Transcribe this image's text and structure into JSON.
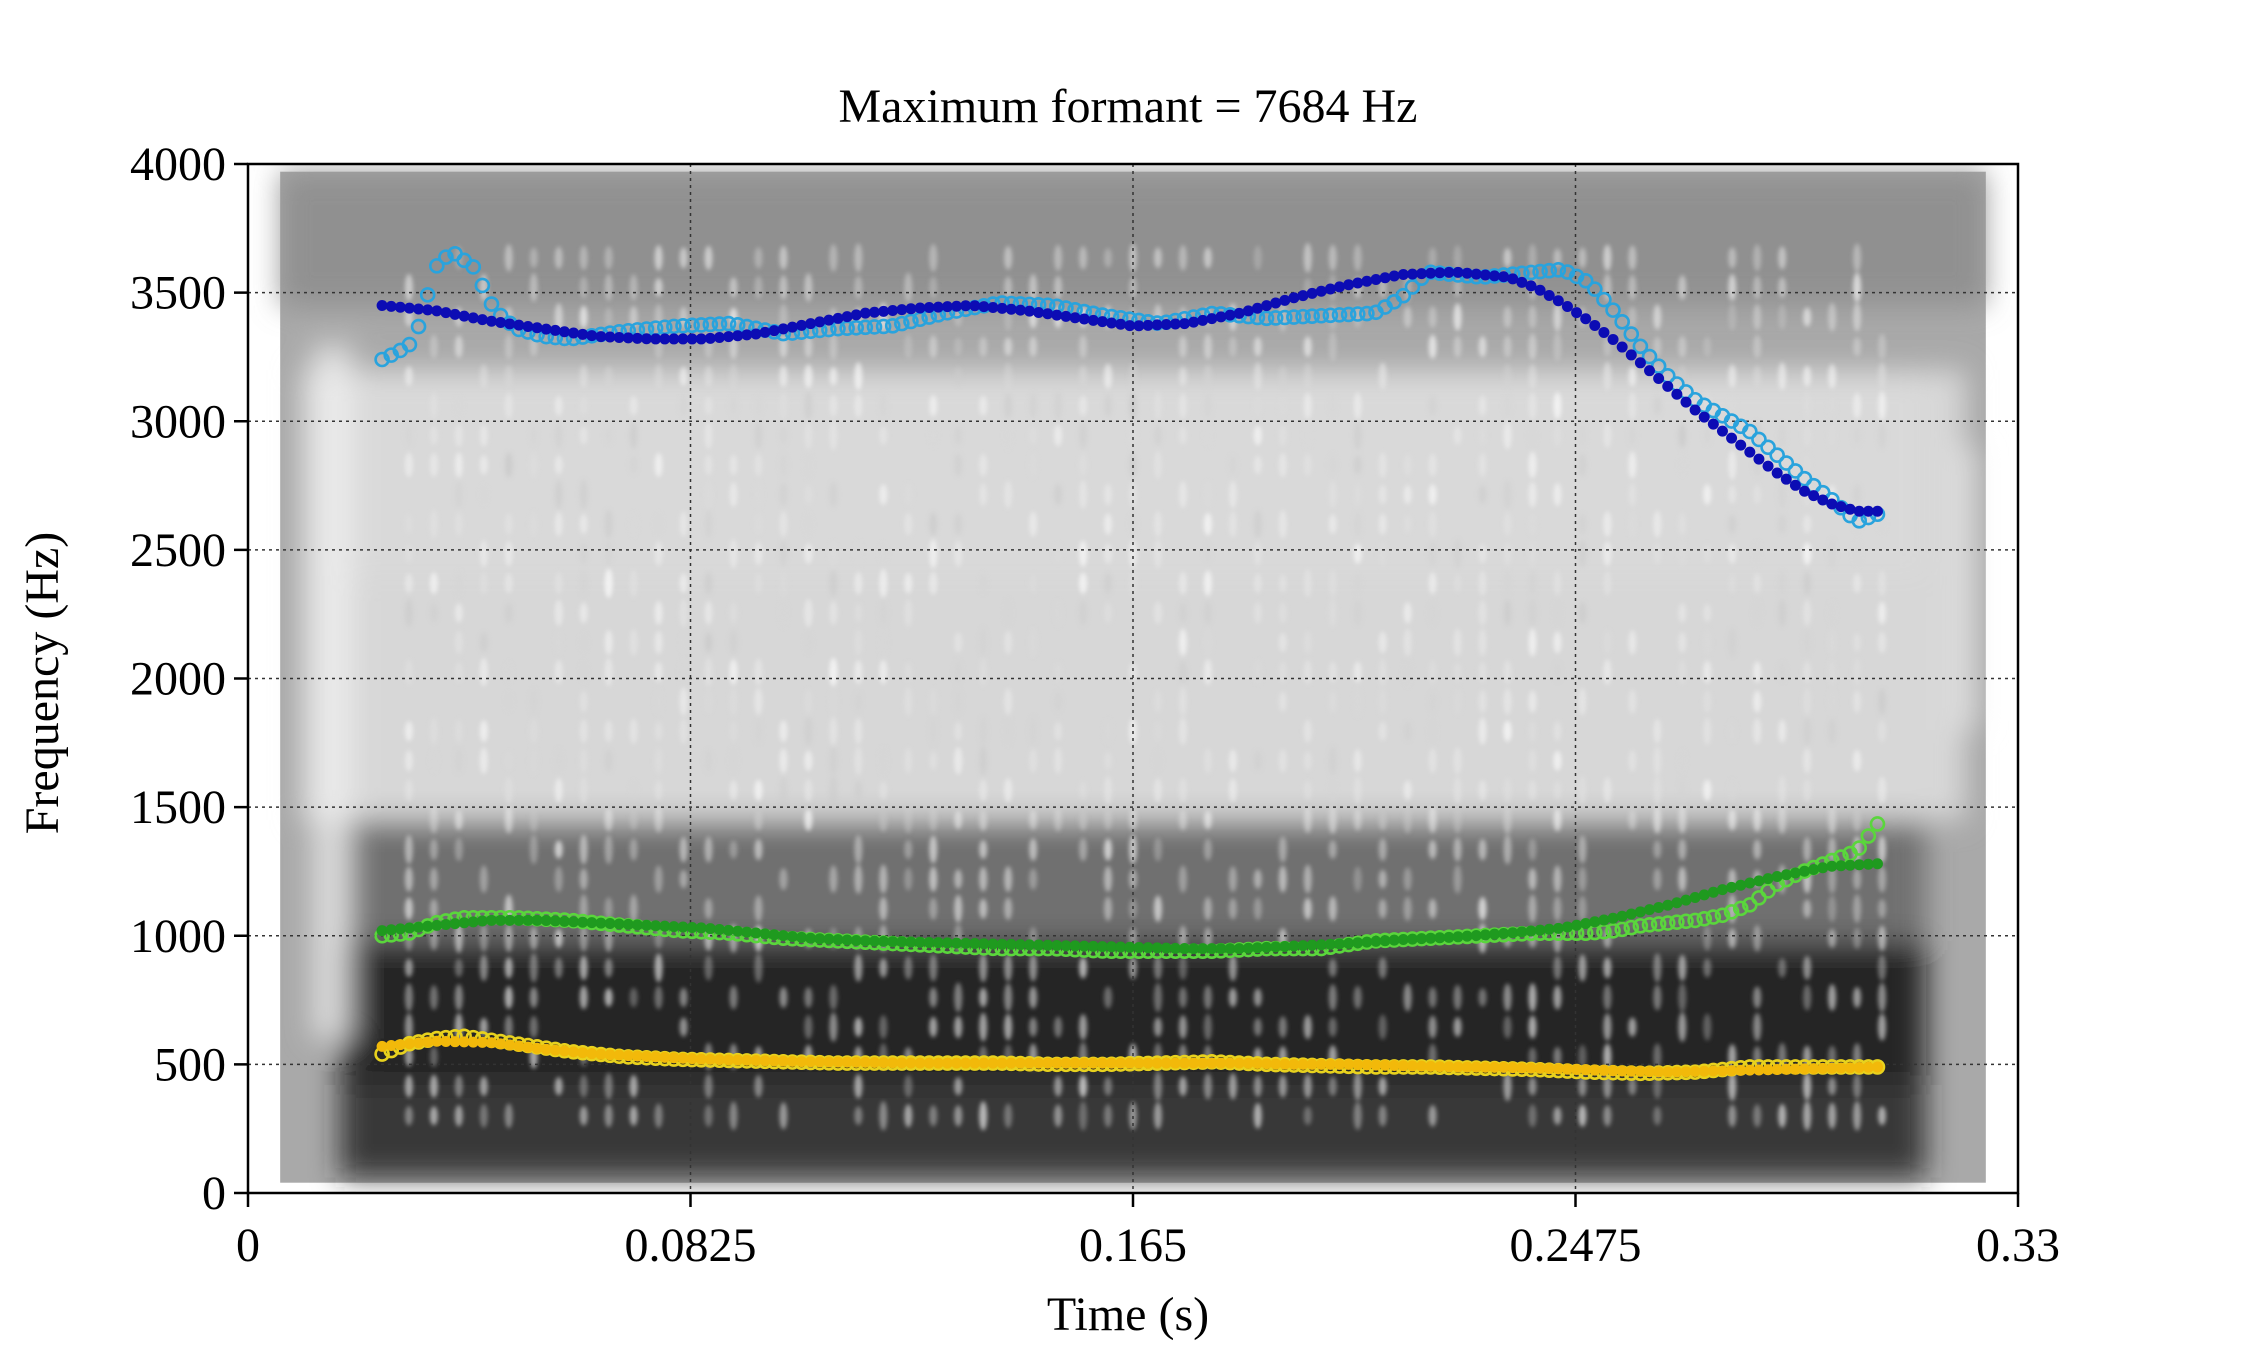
{
  "chart_data": {
    "type": "scatter",
    "title": "Maximum formant = 7684 Hz",
    "xlabel": "Time (s)",
    "ylabel": "Frequency (Hz)",
    "xlim": [
      0,
      0.33
    ],
    "ylim": [
      0,
      4000
    ],
    "xticks": [
      0,
      0.0825,
      0.165,
      0.2475,
      0.33
    ],
    "xtick_labels": [
      "0",
      "0.0825",
      "0.165",
      "0.2475",
      "0.33"
    ],
    "yticks": [
      0,
      500,
      1000,
      1500,
      2000,
      2500,
      3000,
      3500,
      4000
    ],
    "ytick_labels": [
      "0",
      "500",
      "1000",
      "1500",
      "2000",
      "2500",
      "3000",
      "3500",
      "4000"
    ],
    "grid": true,
    "background": "grayscale spectrogram",
    "spectrogram_extent": {
      "x": [
        0.006,
        0.324
      ],
      "y": [
        40,
        3970
      ]
    },
    "spectrogram_dark_bands": [
      {
        "y": [
          60,
          420
        ],
        "level": 0.85
      },
      {
        "y": [
          420,
          980
        ],
        "level": 0.95
      },
      {
        "y": [
          980,
          1450
        ],
        "level": 0.6
      },
      {
        "y": [
          2400,
          3200
        ],
        "level": 0.15
      },
      {
        "y": [
          3450,
          3970
        ],
        "level": 0.45
      }
    ],
    "series": [
      {
        "marker": "open-circle",
        "color": "#29a3dd",
        "x": [
          0.025,
          0.028,
          0.031,
          0.035,
          0.038,
          0.042,
          0.046,
          0.05,
          0.055,
          0.06,
          0.07,
          0.08,
          0.09,
          0.1,
          0.11,
          0.12,
          0.13,
          0.14,
          0.15,
          0.16,
          0.17,
          0.18,
          0.19,
          0.2,
          0.21,
          0.215,
          0.22,
          0.23,
          0.24,
          0.245,
          0.25,
          0.255,
          0.26,
          0.265,
          0.27,
          0.275,
          0.28,
          0.285,
          0.29,
          0.295,
          0.3,
          0.304
        ],
        "y": [
          3240,
          3270,
          3310,
          3600,
          3660,
          3600,
          3430,
          3360,
          3330,
          3320,
          3350,
          3370,
          3380,
          3340,
          3360,
          3370,
          3420,
          3460,
          3450,
          3410,
          3380,
          3420,
          3400,
          3410,
          3420,
          3480,
          3580,
          3560,
          3580,
          3590,
          3540,
          3420,
          3280,
          3170,
          3080,
          3020,
          2960,
          2870,
          2780,
          2700,
          2610,
          2640
        ]
      },
      {
        "marker": "filled-circle",
        "color": "#0c0cb4",
        "x": [
          0.025,
          0.035,
          0.045,
          0.055,
          0.065,
          0.075,
          0.085,
          0.095,
          0.105,
          0.115,
          0.125,
          0.135,
          0.145,
          0.155,
          0.165,
          0.175,
          0.185,
          0.195,
          0.205,
          0.215,
          0.225,
          0.235,
          0.24,
          0.245,
          0.25,
          0.255,
          0.26,
          0.265,
          0.27,
          0.275,
          0.28,
          0.285,
          0.29,
          0.295,
          0.3,
          0.304
        ],
        "y": [
          3450,
          3430,
          3390,
          3360,
          3330,
          3320,
          3320,
          3340,
          3380,
          3420,
          3440,
          3450,
          3430,
          3400,
          3370,
          3380,
          3420,
          3480,
          3530,
          3570,
          3580,
          3560,
          3520,
          3460,
          3390,
          3310,
          3220,
          3130,
          3040,
          2960,
          2880,
          2800,
          2730,
          2680,
          2650,
          2650
        ]
      },
      {
        "marker": "open-circle",
        "color": "#5ad63c",
        "x": [
          0.025,
          0.03,
          0.035,
          0.04,
          0.05,
          0.06,
          0.07,
          0.08,
          0.09,
          0.1,
          0.11,
          0.12,
          0.13,
          0.14,
          0.15,
          0.16,
          0.17,
          0.18,
          0.19,
          0.2,
          0.21,
          0.22,
          0.23,
          0.24,
          0.25,
          0.255,
          0.26,
          0.265,
          0.27,
          0.275,
          0.28,
          0.285,
          0.29,
          0.295,
          0.3,
          0.304
        ],
        "y": [
          1000,
          1010,
          1050,
          1070,
          1070,
          1060,
          1040,
          1020,
          1010,
          990,
          980,
          970,
          960,
          950,
          950,
          940,
          940,
          940,
          950,
          950,
          980,
          990,
          1000,
          1010,
          1010,
          1020,
          1040,
          1050,
          1060,
          1080,
          1120,
          1200,
          1250,
          1290,
          1330,
          1440
        ]
      },
      {
        "marker": "filled-circle",
        "color": "#1f9a1f",
        "x": [
          0.025,
          0.035,
          0.045,
          0.055,
          0.065,
          0.075,
          0.085,
          0.095,
          0.105,
          0.115,
          0.125,
          0.135,
          0.145,
          0.155,
          0.165,
          0.175,
          0.185,
          0.195,
          0.205,
          0.215,
          0.225,
          0.235,
          0.245,
          0.255,
          0.265,
          0.275,
          0.285,
          0.295,
          0.304
        ],
        "y": [
          1020,
          1040,
          1060,
          1060,
          1050,
          1040,
          1030,
          1010,
          990,
          980,
          975,
          970,
          965,
          960,
          955,
          950,
          950,
          960,
          970,
          985,
          995,
          1010,
          1030,
          1070,
          1120,
          1180,
          1230,
          1270,
          1280
        ]
      },
      {
        "marker": "open-circle",
        "color": "#e8d21e",
        "x": [
          0.025,
          0.03,
          0.035,
          0.04,
          0.05,
          0.06,
          0.07,
          0.08,
          0.09,
          0.1,
          0.11,
          0.12,
          0.13,
          0.14,
          0.15,
          0.16,
          0.17,
          0.18,
          0.19,
          0.2,
          0.21,
          0.22,
          0.23,
          0.24,
          0.25,
          0.26,
          0.27,
          0.28,
          0.29,
          0.3,
          0.304
        ],
        "y": [
          540,
          580,
          600,
          610,
          580,
          550,
          530,
          520,
          515,
          510,
          505,
          505,
          505,
          505,
          500,
          500,
          505,
          510,
          500,
          495,
          490,
          490,
          485,
          480,
          470,
          465,
          470,
          490,
          490,
          490,
          490
        ]
      },
      {
        "marker": "filled-circle",
        "color": "#f2b90a",
        "x": [
          0.025,
          0.035,
          0.045,
          0.055,
          0.065,
          0.075,
          0.085,
          0.095,
          0.105,
          0.115,
          0.125,
          0.135,
          0.145,
          0.155,
          0.165,
          0.175,
          0.185,
          0.195,
          0.205,
          0.215,
          0.225,
          0.235,
          0.245,
          0.255,
          0.265,
          0.275,
          0.285,
          0.295,
          0.304
        ],
        "y": [
          570,
          590,
          585,
          560,
          540,
          530,
          520,
          515,
          510,
          508,
          505,
          505,
          505,
          505,
          505,
          505,
          505,
          500,
          500,
          495,
          490,
          488,
          482,
          475,
          470,
          475,
          480,
          485,
          490
        ]
      }
    ]
  }
}
